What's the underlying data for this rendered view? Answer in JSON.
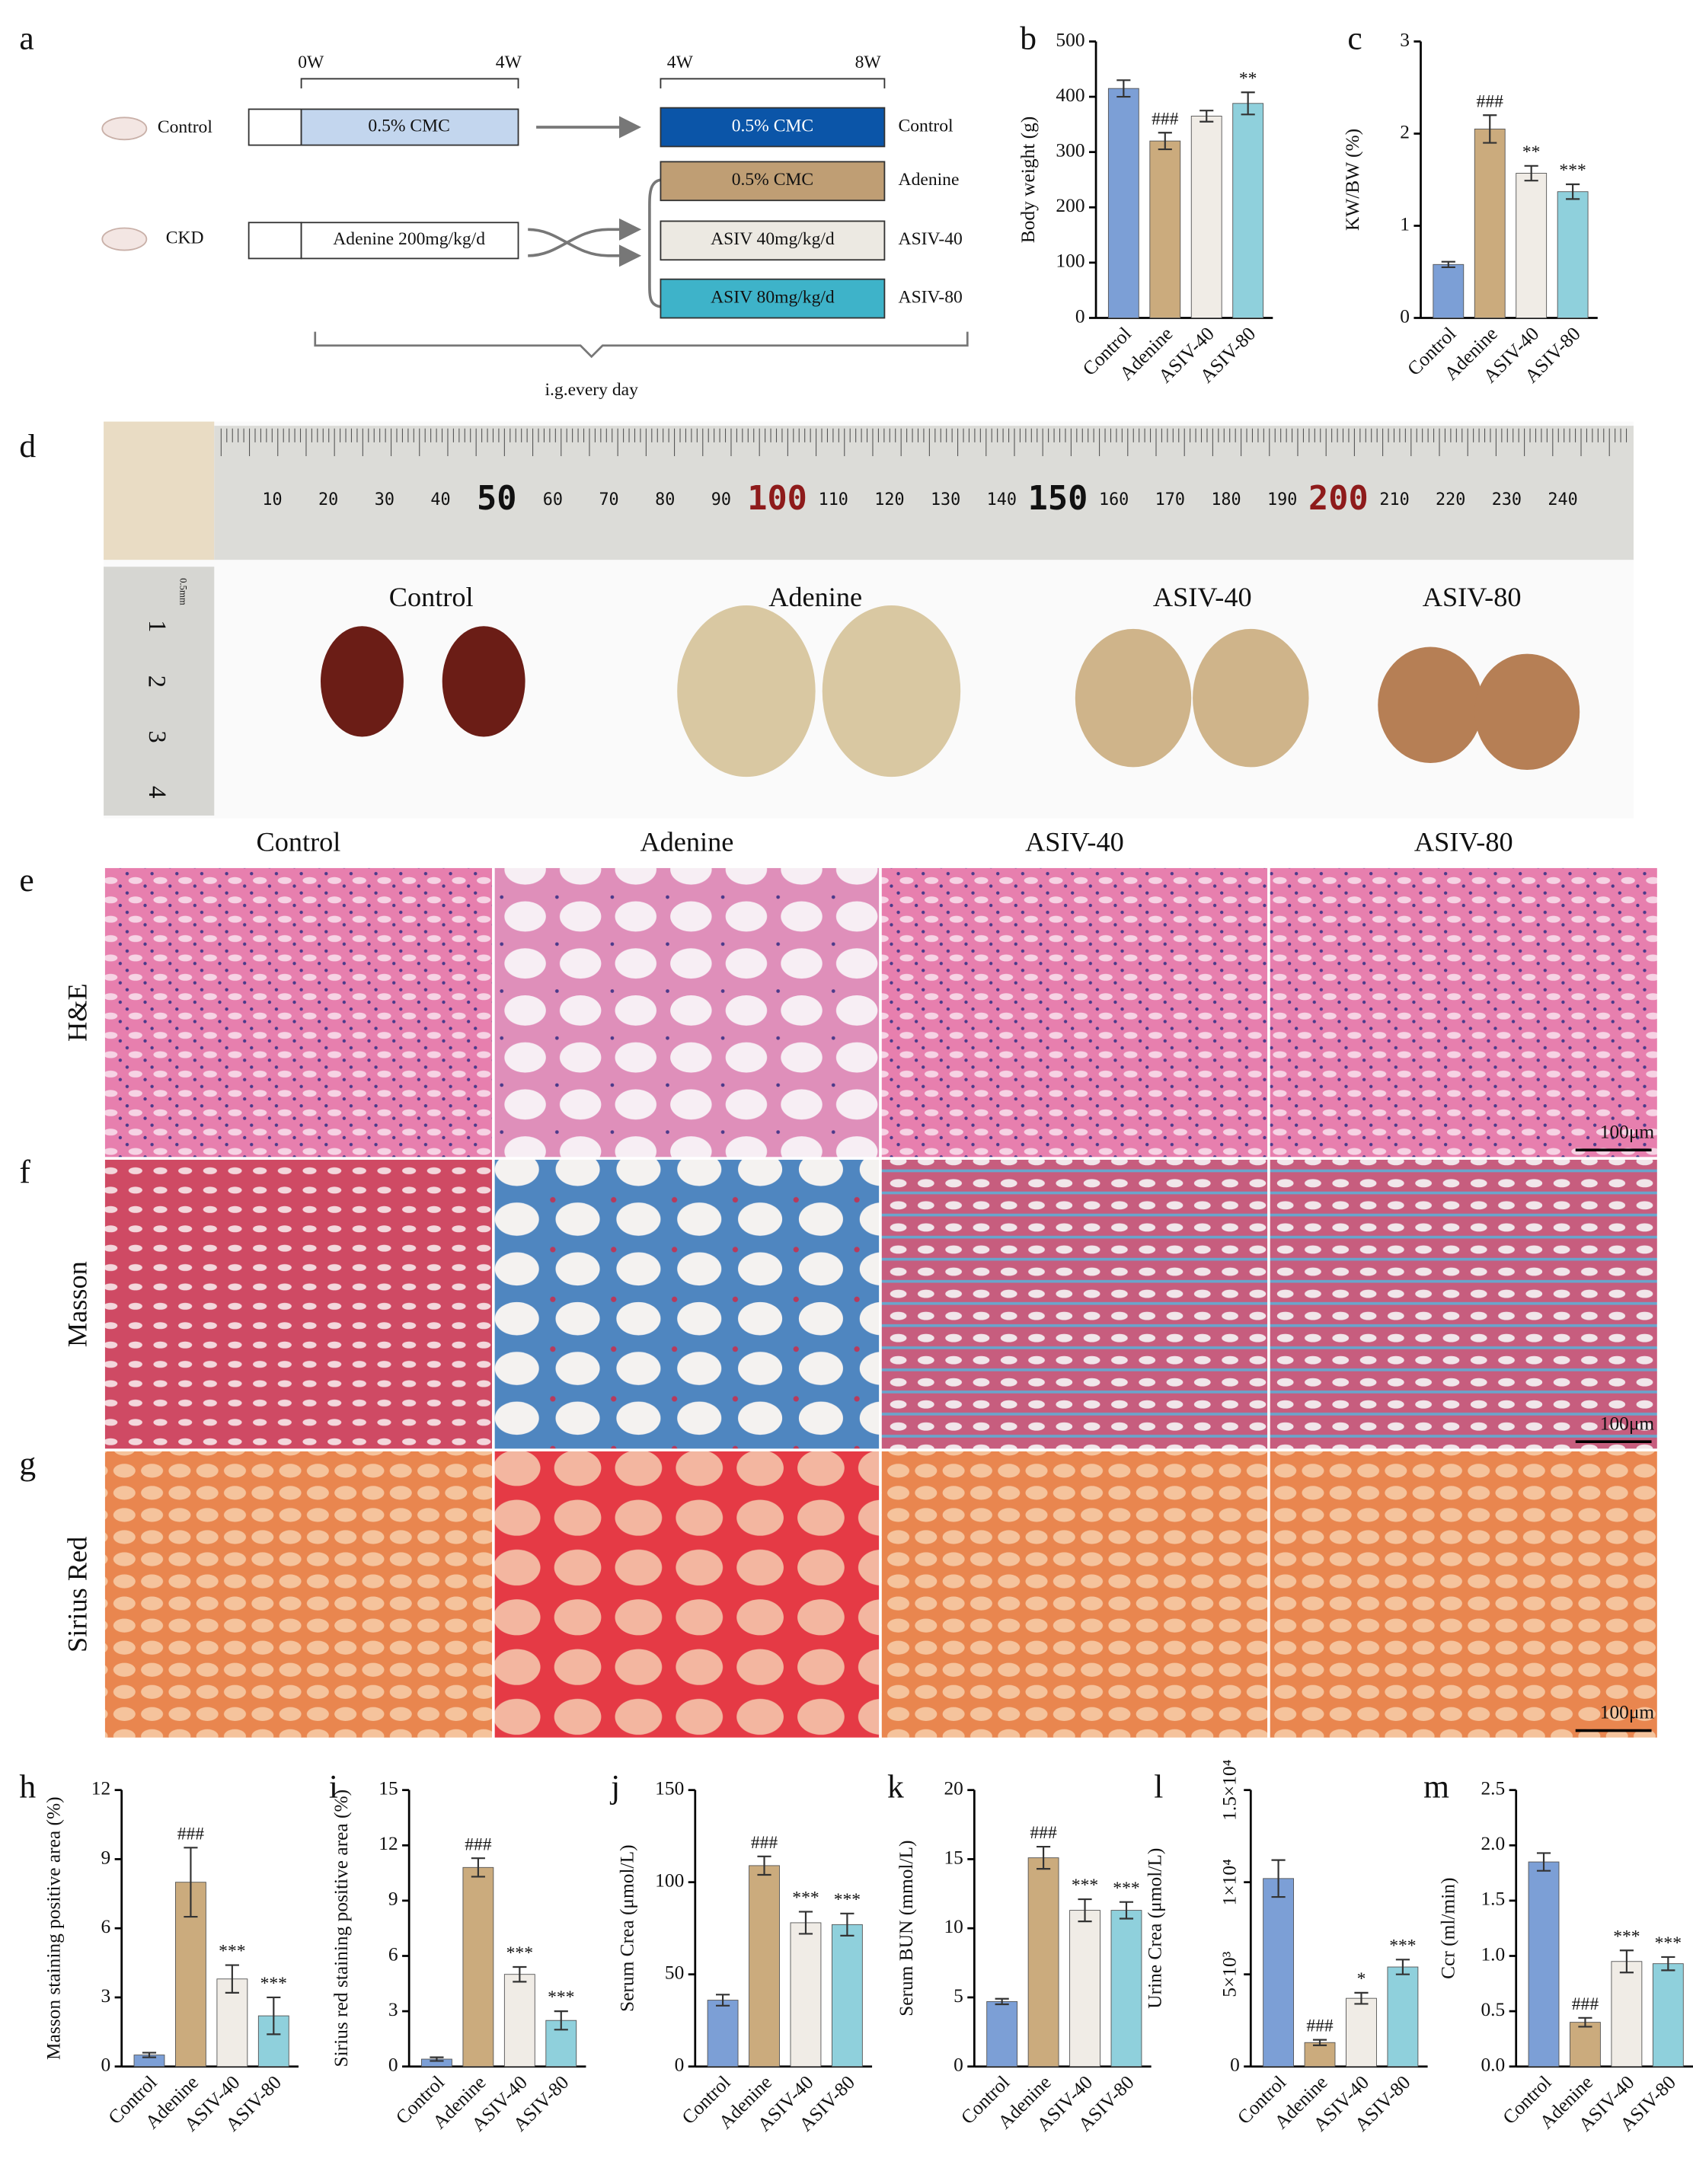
{
  "diagram": {
    "letter": "a",
    "groups": [
      "Control",
      "CKD"
    ],
    "weeks_first": [
      "0W",
      "4W"
    ],
    "weeks_second": [
      "4W",
      "8W"
    ],
    "first_boxes": [
      "0.5% CMC",
      "Adenine 200mg/kg/d"
    ],
    "second_boxes": [
      "0.5% CMC",
      "0.5% CMC",
      "ASIV 40mg/kg/d",
      "ASIV 80mg/kg/d"
    ],
    "second_labels": [
      "Control",
      "Adenine",
      "ASIV-40",
      "ASIV-80"
    ],
    "note": "i.g.every day"
  },
  "photo": {
    "letter": "d",
    "labels": [
      "Control",
      "Adenine",
      "ASIV-40",
      "ASIV-80"
    ],
    "ruler": [
      "10",
      "20",
      "30",
      "40",
      "50",
      "60",
      "70",
      "80",
      "90",
      "100",
      "110",
      "120",
      "130",
      "140",
      "150",
      "160",
      "170",
      "180",
      "190",
      "200",
      "210",
      "220",
      "230",
      "240"
    ],
    "small_ruler": [
      "0.5mm",
      "1",
      "2",
      "3",
      "4"
    ]
  },
  "histology": {
    "letters": [
      "e",
      "f",
      "g"
    ],
    "columns": [
      "Control",
      "Adenine",
      "ASIV-40",
      "ASIV-80"
    ],
    "rows": [
      "H&E",
      "Masson",
      "Sirius Red"
    ],
    "scale_bar": "100μm"
  },
  "chart_data": [
    {
      "type": "bar",
      "letter": "b",
      "ylabel": "Body weight (g)",
      "categories": [
        "Control",
        "Adenine",
        "ASIV-40",
        "ASIV-80"
      ],
      "values": [
        415,
        320,
        365,
        388
      ],
      "errors": [
        15,
        15,
        10,
        20
      ],
      "annotations": [
        null,
        "###",
        null,
        "**"
      ],
      "colors": [
        "#7c9fd6",
        "#cbab7d",
        "#f0ece6",
        "#8fd0dc"
      ],
      "ylim": [
        0,
        500
      ],
      "yticks": [
        0,
        100,
        200,
        300,
        400,
        500
      ]
    },
    {
      "type": "bar",
      "letter": "c",
      "ylabel": "KW/BW (%)",
      "categories": [
        "Control",
        "Adenine",
        "ASIV-40",
        "ASIV-80"
      ],
      "values": [
        0.58,
        2.05,
        1.57,
        1.37
      ],
      "errors": [
        0.03,
        0.15,
        0.08,
        0.08
      ],
      "annotations": [
        null,
        "###",
        "**",
        "***"
      ],
      "colors": [
        "#7c9fd6",
        "#cbab7d",
        "#f0ece6",
        "#8fd0dc"
      ],
      "ylim": [
        0,
        3
      ],
      "yticks": [
        0,
        1,
        2,
        3
      ]
    },
    {
      "type": "bar",
      "letter": "h",
      "ylabel": "Masson staining positive area (%)",
      "categories": [
        "Control",
        "Adenine",
        "ASIV-40",
        "ASIV-80"
      ],
      "values": [
        0.5,
        8.0,
        3.8,
        2.2
      ],
      "errors": [
        0.1,
        1.5,
        0.6,
        0.8
      ],
      "annotations": [
        null,
        "###",
        "***",
        "***"
      ],
      "colors": [
        "#7c9fd6",
        "#cbab7d",
        "#f0ece6",
        "#8fd0dc"
      ],
      "ylim": [
        0,
        12
      ],
      "yticks": [
        0,
        3,
        6,
        9,
        12
      ]
    },
    {
      "type": "bar",
      "letter": "i",
      "ylabel": "Sirius red staining positive area (%)",
      "categories": [
        "Control",
        "Adenine",
        "ASIV-40",
        "ASIV-80"
      ],
      "values": [
        0.4,
        10.8,
        5.0,
        2.5
      ],
      "errors": [
        0.1,
        0.5,
        0.4,
        0.5
      ],
      "annotations": [
        null,
        "###",
        "***",
        "***"
      ],
      "colors": [
        "#7c9fd6",
        "#cbab7d",
        "#f0ece6",
        "#8fd0dc"
      ],
      "ylim": [
        0,
        15
      ],
      "yticks": [
        0,
        3,
        6,
        9,
        12,
        15
      ]
    },
    {
      "type": "bar",
      "letter": "j",
      "ylabel": "Serum Crea (μmol/L)",
      "categories": [
        "Control",
        "Adenine",
        "ASIV-40",
        "ASIV-80"
      ],
      "values": [
        36,
        109,
        78,
        77
      ],
      "errors": [
        3,
        5,
        6,
        6
      ],
      "annotations": [
        null,
        "###",
        "***",
        "***"
      ],
      "colors": [
        "#7c9fd6",
        "#cbab7d",
        "#f0ece6",
        "#8fd0dc"
      ],
      "ylim": [
        0,
        150
      ],
      "yticks": [
        0,
        50,
        100,
        150
      ]
    },
    {
      "type": "bar",
      "letter": "k",
      "ylabel": "Serum BUN (mmol/L)",
      "categories": [
        "Control",
        "Adenine",
        "ASIV-40",
        "ASIV-80"
      ],
      "values": [
        4.7,
        15.1,
        11.3,
        11.3
      ],
      "errors": [
        0.2,
        0.8,
        0.8,
        0.6
      ],
      "annotations": [
        null,
        "###",
        "***",
        "***"
      ],
      "colors": [
        "#7c9fd6",
        "#cbab7d",
        "#f0ece6",
        "#8fd0dc"
      ],
      "ylim": [
        0,
        20
      ],
      "yticks": [
        0,
        5,
        10,
        15,
        20
      ]
    },
    {
      "type": "bar",
      "letter": "l",
      "ylabel": "Urine Crea (μmol/L)",
      "categories": [
        "Control",
        "Adenine",
        "ASIV-40",
        "ASIV-80"
      ],
      "values": [
        10200,
        1300,
        3700,
        5400
      ],
      "errors": [
        1000,
        150,
        300,
        400
      ],
      "annotations": [
        null,
        "###",
        "*",
        "***"
      ],
      "colors": [
        "#7c9fd6",
        "#cbab7d",
        "#f0ece6",
        "#8fd0dc"
      ],
      "ylim": [
        0,
        15000
      ],
      "yticks": [
        0,
        {
          "value": 5000,
          "label": "5×10³"
        },
        {
          "value": 10000,
          "label": "1×10⁴"
        },
        {
          "value": 15000,
          "label": "1.5×10⁴"
        }
      ]
    },
    {
      "type": "bar",
      "letter": "m",
      "ylabel": "Ccr (ml/min)",
      "categories": [
        "Control",
        "Adenine",
        "ASIV-40",
        "ASIV-80"
      ],
      "values": [
        1.85,
        0.4,
        0.95,
        0.93
      ],
      "errors": [
        0.08,
        0.04,
        0.1,
        0.06
      ],
      "annotations": [
        null,
        "###",
        "***",
        "***"
      ],
      "colors": [
        "#7c9fd6",
        "#cbab7d",
        "#f0ece6",
        "#8fd0dc"
      ],
      "ylim": [
        0,
        2.5
      ],
      "yticks": [
        {
          "value": 0,
          "label": "0.0"
        },
        0.5,
        {
          "value": 1,
          "label": "1.0"
        },
        1.5,
        {
          "value": 2,
          "label": "2.0"
        },
        2.5
      ]
    }
  ]
}
